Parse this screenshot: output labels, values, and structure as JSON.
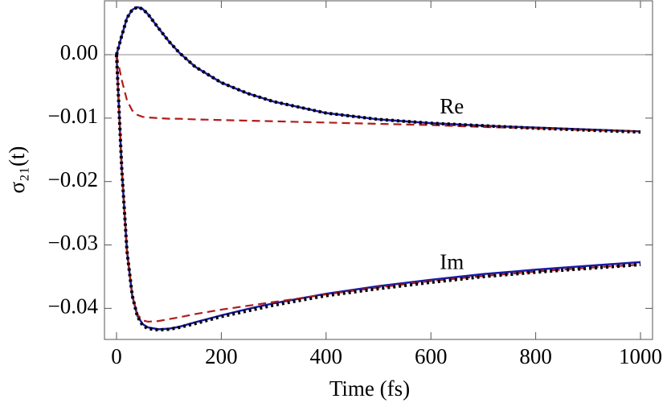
{
  "chart_data": {
    "type": "line",
    "xlabel": "Time (fs)",
    "ylabel": "σ₂₁(t)",
    "annotations": [
      "Re",
      "Im"
    ],
    "x": [
      0,
      10,
      20,
      30,
      40,
      50,
      60,
      80,
      100,
      120,
      150,
      200,
      250,
      300,
      400,
      500,
      600,
      700,
      800,
      900,
      1000
    ],
    "series": [
      {
        "color": "#1a1aa6",
        "style": "solid",
        "values": [
          0,
          0.003,
          0.0058,
          0.0071,
          0.0075,
          0.0072,
          0.0064,
          0.0042,
          0.0021,
          0.0003,
          -0.0019,
          -0.0044,
          -0.0061,
          -0.0074,
          -0.0092,
          -0.0102,
          -0.0108,
          -0.0112,
          -0.0115,
          -0.0118,
          -0.0121
        ]
      },
      {
        "color": "#1a1aa6",
        "style": "solid",
        "values": [
          0,
          -0.018,
          -0.031,
          -0.038,
          -0.0412,
          -0.0425,
          -0.043,
          -0.0433,
          -0.0432,
          -0.0429,
          -0.0422,
          -0.0411,
          -0.0401,
          -0.0392,
          -0.0377,
          -0.0365,
          -0.0355,
          -0.0346,
          -0.0339,
          -0.0333,
          -0.0327
        ]
      },
      {
        "color": "#b01c1c",
        "style": "dashed",
        "values": [
          0,
          -0.004,
          -0.0072,
          -0.0088,
          -0.0095,
          -0.0098,
          -0.0099,
          -0.01,
          -0.0101,
          -0.0101,
          -0.0102,
          -0.0103,
          -0.0104,
          -0.0105,
          -0.0107,
          -0.0109,
          -0.0111,
          -0.0114,
          -0.0116,
          -0.0119,
          -0.0121
        ]
      },
      {
        "color": "#b01c1c",
        "style": "dashed",
        "values": [
          0,
          -0.018,
          -0.031,
          -0.038,
          -0.041,
          -0.0419,
          -0.0421,
          -0.042,
          -0.0417,
          -0.0414,
          -0.0409,
          -0.0402,
          -0.0396,
          -0.039,
          -0.0378,
          -0.0367,
          -0.0357,
          -0.0349,
          -0.0342,
          -0.0336,
          -0.0331
        ]
      },
      {
        "color": "#000000",
        "style": "dotted",
        "values": [
          0,
          0.003,
          0.0058,
          0.0071,
          0.0075,
          0.0072,
          0.0064,
          0.0042,
          0.0021,
          0.0003,
          -0.0019,
          -0.0044,
          -0.0061,
          -0.0074,
          -0.0092,
          -0.0102,
          -0.0108,
          -0.0112,
          -0.0116,
          -0.0119,
          -0.0122
        ]
      },
      {
        "color": "#000000",
        "style": "dotted",
        "values": [
          0,
          -0.018,
          -0.031,
          -0.038,
          -0.0413,
          -0.0427,
          -0.0432,
          -0.0434,
          -0.0433,
          -0.043,
          -0.0424,
          -0.0413,
          -0.0404,
          -0.0395,
          -0.038,
          -0.0369,
          -0.0359,
          -0.035,
          -0.0343,
          -0.0337,
          -0.0331
        ]
      }
    ],
    "xlim": [
      -23,
      1023
    ],
    "ylim": [
      -0.0449,
      0.0085
    ],
    "xticks": [
      0,
      200,
      400,
      600,
      800,
      1000
    ],
    "yticks": [
      {
        "value": 0,
        "label": "0.00"
      },
      {
        "value": -0.01,
        "label": "−0.01"
      },
      {
        "value": -0.02,
        "label": "−0.02"
      },
      {
        "value": -0.03,
        "label": "−0.03"
      },
      {
        "value": -0.04,
        "label": "−0.04"
      }
    ]
  }
}
